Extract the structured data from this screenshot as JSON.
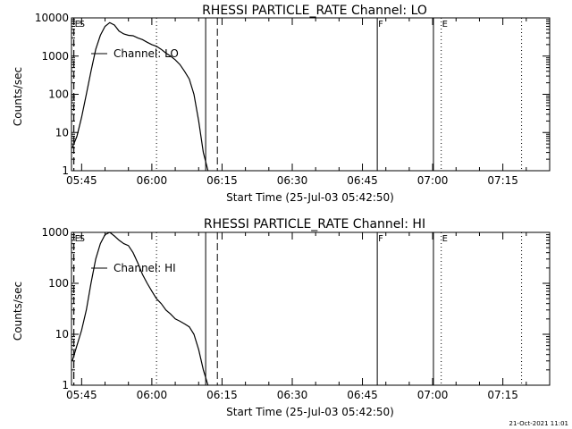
{
  "chart_data": [
    {
      "type": "line",
      "title": "RHESSI PARTICLE_RATE Channel: LO",
      "xlabel": "Start Time (25-Jul-03 05:42:50)",
      "ylabel": "Counts/sec",
      "y_scale": "log",
      "ylim": [
        1,
        10000
      ],
      "xlim": [
        "05:42:50",
        "07:25:00"
      ],
      "x_ticks": [
        "05:45",
        "06:00",
        "06:15",
        "06:30",
        "06:45",
        "07:00",
        "07:15"
      ],
      "y_ticks": [
        "1",
        "10",
        "100",
        "1000",
        "10000"
      ],
      "legend": {
        "label": "Channel: LO",
        "position": "top-left"
      },
      "flags": [
        {
          "label": "E",
          "x": "05:43:20",
          "style": "dashed"
        },
        {
          "label": "S",
          "x": "05:43:20",
          "style": "dashed"
        },
        {
          "label": "",
          "x": "06:01:00",
          "style": "dotted"
        },
        {
          "label": "",
          "x": "06:11:30",
          "style": "solid"
        },
        {
          "label": "",
          "x": "06:14:00",
          "style": "dashed"
        },
        {
          "label": "F",
          "x": "06:48:10",
          "style": "solid"
        },
        {
          "label": "",
          "x": "07:00:10",
          "style": "solid"
        },
        {
          "label": "E",
          "x": "07:01:50",
          "style": "dotted"
        },
        {
          "label": "",
          "x": "07:19:00",
          "style": "dotted"
        }
      ],
      "series": [
        {
          "x": [
            "05:43:00",
            "05:44:00",
            "05:45:00",
            "05:46:00",
            "05:47:00",
            "05:48:00",
            "05:49:00",
            "05:50:00",
            "05:51:00",
            "05:52:00",
            "05:53:00",
            "05:54:00",
            "05:55:00",
            "05:56:00",
            "05:57:00",
            "05:58:00",
            "05:59:00",
            "06:00:00",
            "06:01:00",
            "06:02:00",
            "06:03:00",
            "06:04:00",
            "06:05:00",
            "06:06:00",
            "06:07:00",
            "06:08:00",
            "06:09:00",
            "06:10:00",
            "06:11:00",
            "06:12:00"
          ],
          "values": [
            4,
            8,
            25,
            100,
            400,
            1500,
            3500,
            6000,
            7500,
            6500,
            4500,
            3800,
            3500,
            3400,
            3000,
            2700,
            2300,
            2000,
            1800,
            1500,
            1200,
            1000,
            800,
            600,
            400,
            250,
            100,
            20,
            3,
            1
          ]
        }
      ]
    },
    {
      "type": "line",
      "title": "RHESSI PARTICLE_RATE Channel: HI",
      "xlabel": "Start Time (25-Jul-03 05:42:50)",
      "ylabel": "Counts/sec",
      "y_scale": "log",
      "ylim": [
        1,
        1000
      ],
      "xlim": [
        "05:42:50",
        "07:25:00"
      ],
      "x_ticks": [
        "05:45",
        "06:00",
        "06:15",
        "06:30",
        "06:45",
        "07:00",
        "07:15"
      ],
      "y_ticks": [
        "1",
        "10",
        "100",
        "1000"
      ],
      "legend": {
        "label": "Channel: HI",
        "position": "top-left"
      },
      "flags": [
        {
          "label": "E",
          "x": "05:43:20",
          "style": "dashed"
        },
        {
          "label": "S",
          "x": "05:43:20",
          "style": "dashed"
        },
        {
          "label": "",
          "x": "06:01:00",
          "style": "dotted"
        },
        {
          "label": "",
          "x": "06:11:30",
          "style": "solid"
        },
        {
          "label": "",
          "x": "06:14:00",
          "style": "dashed"
        },
        {
          "label": "F",
          "x": "06:48:10",
          "style": "solid"
        },
        {
          "label": "",
          "x": "07:00:10",
          "style": "solid"
        },
        {
          "label": "E",
          "x": "07:01:50",
          "style": "dotted"
        },
        {
          "label": "",
          "x": "07:19:00",
          "style": "dotted"
        }
      ],
      "series": [
        {
          "x": [
            "05:43:00",
            "05:44:00",
            "05:45:00",
            "05:46:00",
            "05:47:00",
            "05:48:00",
            "05:49:00",
            "05:50:00",
            "05:51:00",
            "05:52:00",
            "05:53:00",
            "05:54:00",
            "05:55:00",
            "05:56:00",
            "05:57:00",
            "05:58:00",
            "05:59:00",
            "06:00:00",
            "06:01:00",
            "06:02:00",
            "06:03:00",
            "06:04:00",
            "06:05:00",
            "06:06:00",
            "06:07:00",
            "06:08:00",
            "06:09:00",
            "06:10:00",
            "06:11:00",
            "06:12:00"
          ],
          "values": [
            3,
            6,
            12,
            30,
            100,
            300,
            600,
            900,
            1000,
            850,
            700,
            600,
            550,
            400,
            250,
            150,
            100,
            70,
            50,
            40,
            30,
            25,
            20,
            18,
            16,
            14,
            10,
            5,
            2,
            1
          ]
        }
      ]
    }
  ],
  "footer": {
    "timestamp": "21-Oct-2021 11:01"
  }
}
